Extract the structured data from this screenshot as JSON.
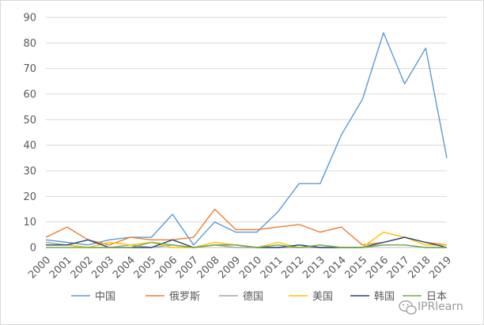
{
  "chart_data": {
    "type": "line",
    "title": "",
    "xlabel": "",
    "ylabel": "",
    "ylim": [
      0,
      90
    ],
    "yticks": [
      0,
      10,
      20,
      30,
      40,
      50,
      60,
      70,
      80,
      90
    ],
    "grid": true,
    "legend_position": "bottom",
    "x": [
      "2000",
      "2001",
      "2002",
      "2003",
      "2004",
      "2005",
      "2006",
      "2007",
      "2008",
      "2009",
      "2010",
      "2011",
      "2012",
      "2013",
      "2014",
      "2015",
      "2016",
      "2017",
      "2018",
      "2019"
    ],
    "series": [
      {
        "name": "中国",
        "color": "#5b9bd5",
        "values": [
          3,
          2,
          1,
          3,
          4,
          4,
          13,
          1,
          10,
          6,
          6,
          14,
          25,
          25,
          44,
          58,
          84,
          64,
          78,
          35
        ]
      },
      {
        "name": "俄罗斯",
        "color": "#ed7d31",
        "values": [
          4,
          8,
          3,
          1,
          4,
          3,
          3,
          4,
          15,
          7,
          7,
          8,
          9,
          6,
          8,
          1,
          2,
          4,
          2,
          1
        ]
      },
      {
        "name": "德国",
        "color": "#a5a5a5",
        "values": [
          2,
          1,
          0,
          0,
          1,
          0,
          1,
          0,
          1,
          0,
          0,
          0,
          0,
          0,
          0,
          0,
          1,
          1,
          0,
          0
        ]
      },
      {
        "name": "美国",
        "color": "#ffc000",
        "values": [
          1,
          1,
          0,
          2,
          1,
          2,
          0,
          0,
          2,
          1,
          0,
          2,
          0,
          1,
          0,
          0,
          6,
          4,
          1,
          1
        ]
      },
      {
        "name": "韩国",
        "color": "#264478",
        "values": [
          1,
          1,
          3,
          0,
          0,
          0,
          3,
          0,
          1,
          1,
          0,
          0,
          1,
          0,
          0,
          0,
          2,
          4,
          2,
          0
        ]
      },
      {
        "name": "日本",
        "color": "#70ad47",
        "values": [
          0,
          0,
          0,
          0,
          0,
          2,
          1,
          0,
          1,
          1,
          0,
          1,
          0,
          1,
          0,
          0,
          1,
          1,
          0,
          0
        ]
      }
    ]
  },
  "watermark": {
    "text": "IPRlearn",
    "icon": "wechat-icon"
  }
}
